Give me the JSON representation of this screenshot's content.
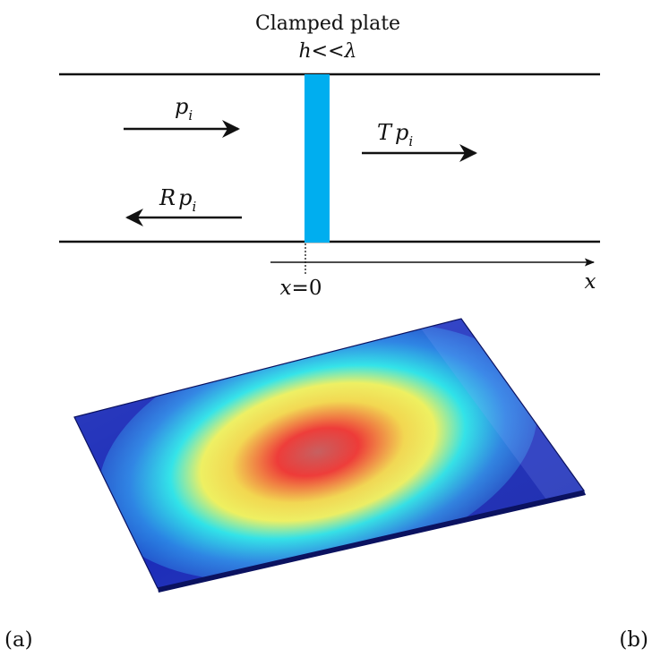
{
  "panel_a": {
    "title": "Clamped plate",
    "thickness_relation": {
      "h": "h",
      "op": "<<",
      "lambda": "λ"
    },
    "incident_wave": {
      "symbol": "p",
      "subscript": "i"
    },
    "transmitted_wave": {
      "coefficient": "T",
      "symbol": "p",
      "subscript": "i"
    },
    "reflected_wave": {
      "coefficient": "R",
      "symbol": "p",
      "subscript": "i"
    },
    "origin_label": {
      "var": "x",
      "eq": "=",
      "value": "0"
    },
    "axis_label": "x",
    "plate_color": "#00aeef",
    "line_color": "#111111"
  },
  "labels": {
    "a": "(a)",
    "b": "(b)"
  },
  "panel_b": {
    "colormap": [
      "#1a2bb8",
      "#1f7fe0",
      "#27e8f0",
      "#f6f05a",
      "#f04030"
    ],
    "edge_color": "#0b1260"
  }
}
